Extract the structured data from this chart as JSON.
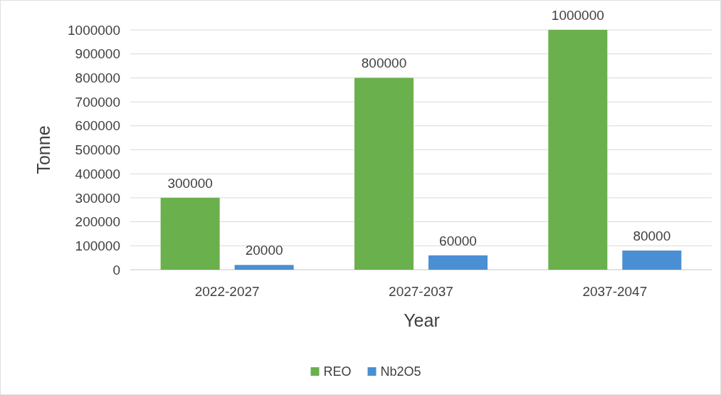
{
  "chart_data": {
    "type": "bar",
    "xlabel": "Year",
    "ylabel": "Tonne",
    "categories": [
      "2022-2027",
      "2027-2037",
      "2037-2047"
    ],
    "series": [
      {
        "name": "REO",
        "color": "#6ab04c",
        "values": [
          300000,
          800000,
          1000000
        ]
      },
      {
        "name": "Nb2O5",
        "color": "#4a8fd4",
        "values": [
          20000,
          60000,
          80000
        ]
      }
    ],
    "ylim": [
      0,
      1000000
    ],
    "yticks": [
      0,
      100000,
      200000,
      300000,
      400000,
      500000,
      600000,
      700000,
      800000,
      900000,
      1000000
    ],
    "grid": "y",
    "legend": "bottom",
    "data_labels": true
  }
}
